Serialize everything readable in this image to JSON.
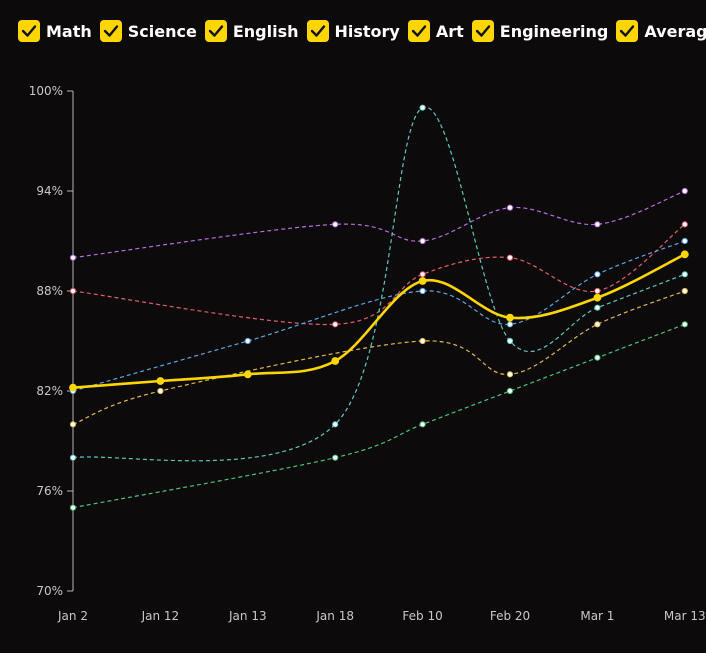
{
  "legend": {
    "check_color": "#ffd600",
    "items": [
      {
        "label": "Math",
        "checked": true
      },
      {
        "label": "Science",
        "checked": true
      },
      {
        "label": "English",
        "checked": true
      },
      {
        "label": "History",
        "checked": true
      },
      {
        "label": "Art",
        "checked": true
      },
      {
        "label": "Engineering",
        "checked": true
      },
      {
        "label": "Average",
        "checked": true
      }
    ]
  },
  "chart_data": {
    "type": "line",
    "x": [
      "Jan 2",
      "Jan 12",
      "Jan 13",
      "Jan 18",
      "Feb 10",
      "Feb 20",
      "Mar 1",
      "Mar 13"
    ],
    "ylim": [
      70,
      100
    ],
    "yticks": [
      "70%",
      "76%",
      "82%",
      "88%",
      "94%",
      "100%"
    ],
    "grid": false,
    "legend_position": "top-left",
    "series": [
      {
        "name": "Math",
        "color": "#e35c6e",
        "values": [
          88,
          null,
          null,
          86,
          89,
          90,
          88,
          92
        ]
      },
      {
        "name": "Science",
        "color": "#5aa8e0",
        "values": [
          82,
          null,
          85,
          null,
          88,
          86,
          89,
          91
        ]
      },
      {
        "name": "English",
        "color": "#e0b84a",
        "values": [
          80,
          82,
          null,
          null,
          85,
          83,
          86,
          88
        ]
      },
      {
        "name": "History",
        "color": "#b46ee0",
        "values": [
          90,
          null,
          null,
          92,
          91,
          93,
          92,
          94
        ]
      },
      {
        "name": "Art",
        "color": "#5ec8c0",
        "values": [
          78,
          null,
          null,
          80,
          99,
          85,
          87,
          89
        ]
      },
      {
        "name": "Engineering",
        "color": "#4cc07a",
        "values": [
          75,
          null,
          null,
          78,
          80,
          82,
          84,
          86
        ]
      },
      {
        "name": "Average",
        "color": "#ffd600",
        "values": [
          82.2,
          82.6,
          83.0,
          83.8,
          88.6,
          86.4,
          87.6,
          90.2
        ]
      }
    ]
  }
}
